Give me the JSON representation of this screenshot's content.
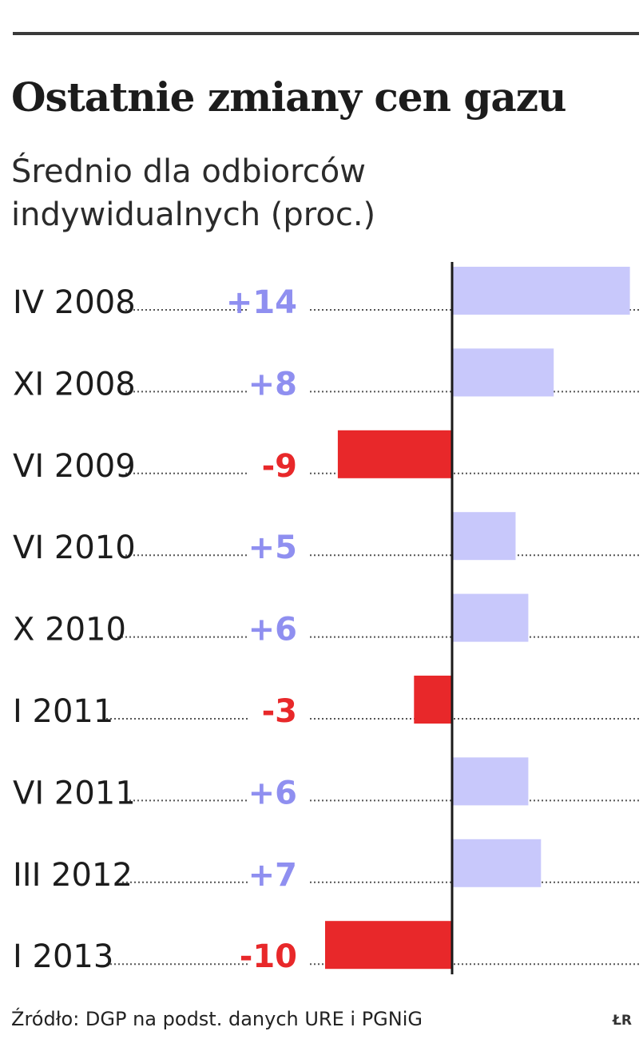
{
  "header": {
    "title": "Ostatnie zmiany cen gazu",
    "subtitle_line1": "Średnio dla odbiorców",
    "subtitle_line2": "indywidualnych (proc.)"
  },
  "footer": {
    "source": "Źródło: DGP na podst. danych URE i PGNiG",
    "credit": "ŁR"
  },
  "colors": {
    "positive": "#c8c8fb",
    "positive_text": "#8f8ff0",
    "negative": "#e8282a",
    "negative_text": "#e8282a",
    "axis": "#1a1a1a",
    "dots": "#555555"
  },
  "chart_data": {
    "type": "bar",
    "orientation": "horizontal",
    "categories": [
      "IV 2008",
      "XI 2008",
      "VI 2009",
      "VI 2010",
      "X 2010",
      "I 2011",
      "VI 2011",
      "III 2012",
      "I 2013"
    ],
    "values": [
      14,
      8,
      -9,
      5,
      6,
      -3,
      6,
      7,
      -10
    ],
    "value_labels": [
      "+14",
      "+8",
      "-9",
      "+5",
      "+6",
      "-3",
      "+6",
      "+7",
      "-10"
    ],
    "title": "Ostatnie zmiany cen gazu",
    "xlabel": "",
    "ylabel": "",
    "xlim": [
      -10,
      14
    ],
    "grid": false
  }
}
